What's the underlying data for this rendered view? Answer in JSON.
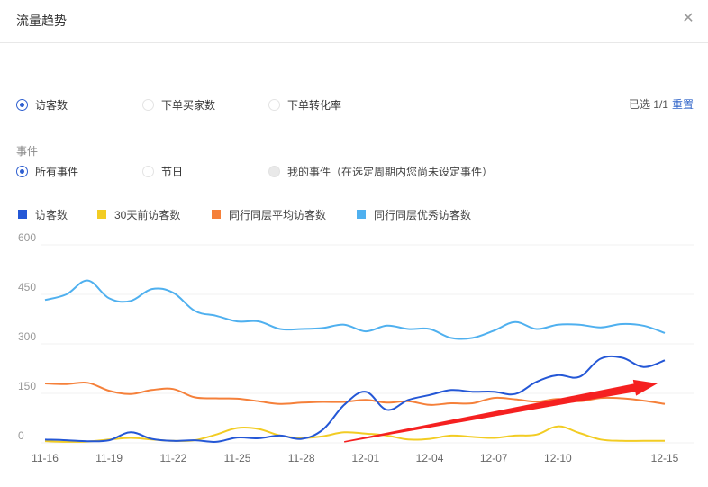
{
  "dialog": {
    "title": "流量趋势",
    "close_icon": "close-icon"
  },
  "metric_options": [
    {
      "label": "访客数",
      "checked": true
    },
    {
      "label": "下单买家数",
      "checked": false
    },
    {
      "label": "下单转化率",
      "checked": false
    }
  ],
  "selection": {
    "text": "已选 1/1",
    "reset_label": "重置"
  },
  "events": {
    "section_label": "事件",
    "options": [
      {
        "label": "所有事件",
        "checked": true,
        "disabled": false
      },
      {
        "label": "节日",
        "checked": false,
        "disabled": false
      },
      {
        "label": "我的事件（在选定周期内您尚未设定事件）",
        "checked": false,
        "disabled": true
      }
    ]
  },
  "legend": [
    {
      "label": "访客数",
      "color": "#2457d6"
    },
    {
      "label": "30天前访客数",
      "color": "#f2cc23"
    },
    {
      "label": "同行同层平均访客数",
      "color": "#f5803a"
    },
    {
      "label": "同行同层优秀访客数",
      "color": "#4fb0ef"
    }
  ],
  "annotation": {
    "type": "arrow",
    "color": "#f52020",
    "from": {
      "x_index": 14.0,
      "value": 3
    },
    "to": {
      "x_index": 29.0,
      "value": 180
    }
  },
  "chart_data": {
    "type": "line",
    "title": "",
    "xlabel": "",
    "ylabel": "",
    "ylim": [
      0,
      600
    ],
    "yticks": [
      0,
      150,
      300,
      450,
      600
    ],
    "grid": true,
    "legend_position": "top-left",
    "x": [
      "11-16",
      "11-17",
      "11-18",
      "11-19",
      "11-20",
      "11-21",
      "11-22",
      "11-23",
      "11-24",
      "11-25",
      "11-26",
      "11-27",
      "11-28",
      "11-29",
      "11-30",
      "12-01",
      "12-02",
      "12-03",
      "12-04",
      "12-05",
      "12-06",
      "12-07",
      "12-08",
      "12-09",
      "12-10",
      "12-11",
      "12-12",
      "12-13",
      "12-14",
      "12-15"
    ],
    "xtick_labels": [
      "11-16",
      "11-19",
      "11-22",
      "11-25",
      "11-28",
      "12-01",
      "12-04",
      "12-07",
      "12-10",
      "12-15"
    ],
    "series": [
      {
        "name": "访客数",
        "color": "#2457d6",
        "values": [
          10,
          8,
          5,
          8,
          32,
          12,
          6,
          8,
          3,
          16,
          14,
          22,
          12,
          40,
          115,
          155,
          100,
          130,
          145,
          160,
          155,
          155,
          148,
          185,
          205,
          200,
          255,
          258,
          230,
          250
        ]
      },
      {
        "name": "30天前访客数",
        "color": "#f2cc23",
        "values": [
          5,
          3,
          4,
          10,
          15,
          10,
          6,
          8,
          25,
          45,
          42,
          22,
          15,
          20,
          32,
          28,
          22,
          10,
          12,
          22,
          18,
          15,
          22,
          25,
          50,
          30,
          10,
          6,
          6,
          6
        ]
      },
      {
        "name": "同行同层平均访客数",
        "color": "#f5803a",
        "values": [
          180,
          178,
          182,
          158,
          148,
          160,
          163,
          138,
          135,
          134,
          126,
          118,
          122,
          124,
          124,
          130,
          122,
          126,
          115,
          120,
          120,
          136,
          132,
          125,
          133,
          126,
          136,
          135,
          128,
          118
        ]
      },
      {
        "name": "同行同层优秀访客数",
        "color": "#4fb0ef",
        "values": [
          433,
          450,
          492,
          438,
          430,
          466,
          455,
          400,
          385,
          368,
          368,
          345,
          345,
          348,
          358,
          338,
          355,
          345,
          345,
          318,
          318,
          340,
          366,
          345,
          358,
          358,
          350,
          360,
          355,
          333
        ]
      }
    ]
  }
}
